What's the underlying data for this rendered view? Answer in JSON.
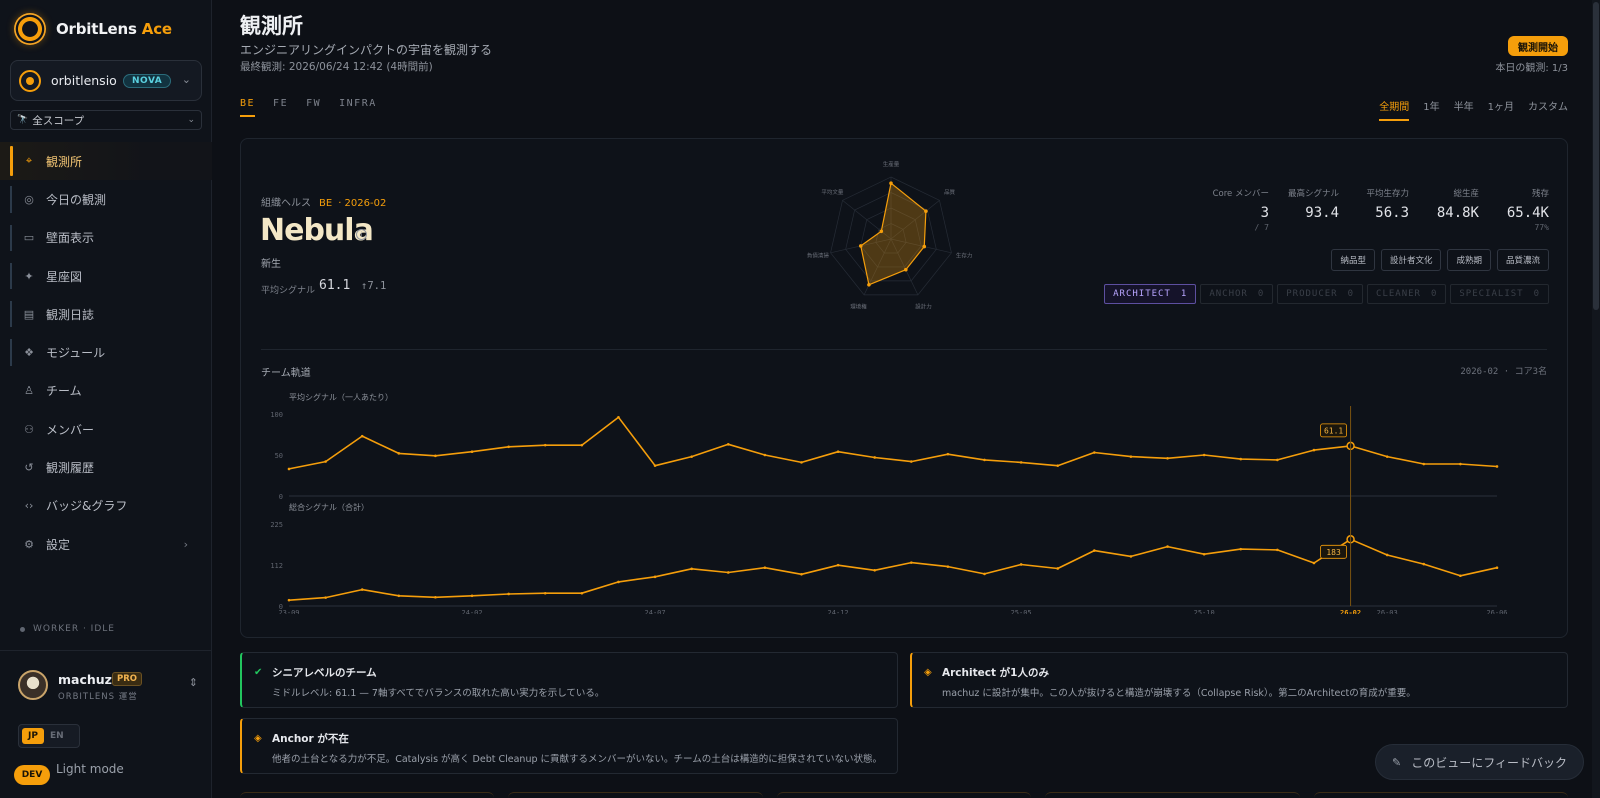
{
  "brand": {
    "name": "OrbitLens",
    "accent": "Ace"
  },
  "org": {
    "name": "orbitlensio",
    "badge": "NOVA"
  },
  "scope": {
    "label": "全スコープ"
  },
  "nav": [
    {
      "label": "観測所",
      "icon": "telescope-icon",
      "active": true
    },
    {
      "label": "今日の観測",
      "icon": "radar-icon"
    },
    {
      "label": "壁面表示",
      "icon": "monitor-icon"
    },
    {
      "label": "星座図",
      "icon": "constellation-icon"
    },
    {
      "label": "観測日誌",
      "icon": "journal-icon"
    },
    {
      "label": "モジュール",
      "icon": "modules-icon"
    },
    {
      "label": "チーム",
      "icon": "team-icon"
    },
    {
      "label": "メンバー",
      "icon": "members-icon"
    },
    {
      "label": "観測履歴",
      "icon": "history-icon"
    },
    {
      "label": "バッジ&グラフ",
      "icon": "code-icon"
    },
    {
      "label": "設定",
      "icon": "gear-icon"
    }
  ],
  "worker": "WORKER · IDLE",
  "user": {
    "name": "machuz",
    "plan": "PRO",
    "role": "ORBITLENS 運営"
  },
  "lang": {
    "on": "JP",
    "off": "EN"
  },
  "light_mode": "Light mode",
  "dev": "DEV",
  "header": {
    "title": "観測所",
    "subtitle": "エンジニアリングインパクトの宇宙を観測する",
    "last": "最終観測: 2026/06/24 12:42 (4時間前)",
    "start_button": "観測開始",
    "today": "本日の観測: 1/3"
  },
  "tabs": [
    "BE",
    "FE",
    "FW",
    "INFRA"
  ],
  "period_tabs": [
    "全期間",
    "1年",
    "半年",
    "1ヶ月",
    "カスタム"
  ],
  "health": {
    "label": "組織ヘルス",
    "scope": "BE",
    "date": "· 2026-02",
    "name": "Nebula",
    "phase": "新生",
    "avg_label": "平均シグナル",
    "avg_value": "61.1",
    "avg_delta": "↑7.1"
  },
  "radar": {
    "axes": [
      "生産量",
      "品質",
      "生存力",
      "設計力",
      "環境権",
      "負債清掃",
      "平均文量"
    ],
    "values": [
      0.9,
      0.72,
      0.55,
      0.55,
      0.82,
      0.5,
      0.2
    ]
  },
  "stats": [
    {
      "label": "Core メンバー",
      "value": "3",
      "sub": "/ 7"
    },
    {
      "label": "最高シグナル",
      "value": "93.4",
      "sub": ""
    },
    {
      "label": "平均生存力",
      "value": "56.3",
      "sub": ""
    },
    {
      "label": "総生産",
      "value": "84.8K",
      "sub": ""
    },
    {
      "label": "残存",
      "value": "65.4K",
      "sub": "77%"
    }
  ],
  "tags": [
    "納品型",
    "設計者文化",
    "成熟期",
    "品質濃流"
  ],
  "roles": [
    {
      "label": "ARCHITECT",
      "count": "1",
      "on": true
    },
    {
      "label": "ANCHOR",
      "count": "0"
    },
    {
      "label": "PRODUCER",
      "count": "0"
    },
    {
      "label": "CLEANER",
      "count": "0"
    },
    {
      "label": "SPECIALIST",
      "count": "0"
    }
  ],
  "trajectory": {
    "title": "チーム軌道",
    "meta": "2026-02 · コア3名"
  },
  "chart_data": [
    {
      "type": "line",
      "title": "平均シグナル（一人あたり）",
      "ylim": [
        0,
        100
      ],
      "yticks": [
        "100",
        "50",
        "0"
      ],
      "x": [
        "23-09",
        "23-10",
        "23-11",
        "23-12",
        "24-01",
        "24-02",
        "24-03",
        "24-04",
        "24-05",
        "24-06",
        "24-07",
        "24-08",
        "24-09",
        "24-10",
        "24-11",
        "24-12",
        "25-01",
        "25-02",
        "25-03",
        "25-04",
        "25-05",
        "25-06",
        "25-07",
        "25-08",
        "25-09",
        "25-10",
        "25-11",
        "25-12",
        "26-01",
        "26-02",
        "26-03",
        "26-04",
        "26-05",
        "26-06"
      ],
      "values": [
        33,
        42,
        73,
        52,
        49,
        54,
        60,
        62,
        62,
        96,
        37,
        48,
        63,
        50,
        41,
        54,
        47,
        42,
        51,
        44,
        41,
        37,
        53,
        48,
        46,
        50,
        45,
        44,
        56,
        61.1,
        48,
        39,
        39,
        36
      ],
      "highlight": {
        "x": "26-02",
        "label": "61.1"
      },
      "color": "#f59e0b"
    },
    {
      "type": "line",
      "title": "総合シグナル（合計）",
      "ylim": [
        0,
        225
      ],
      "yticks": [
        "225",
        "112",
        "0"
      ],
      "x": [
        "23-09",
        "23-10",
        "23-11",
        "23-12",
        "24-01",
        "24-02",
        "24-03",
        "24-04",
        "24-05",
        "24-06",
        "24-07",
        "24-08",
        "24-09",
        "24-10",
        "24-11",
        "24-12",
        "25-01",
        "25-02",
        "25-03",
        "25-04",
        "25-05",
        "25-06",
        "25-07",
        "25-08",
        "25-09",
        "25-10",
        "25-11",
        "25-12",
        "26-01",
        "26-02",
        "26-03",
        "26-04",
        "26-05",
        "26-06"
      ],
      "values": [
        16,
        23,
        45,
        28,
        24,
        28,
        33,
        35,
        35,
        66,
        80,
        102,
        92,
        105,
        87,
        112,
        98,
        119,
        108,
        88,
        114,
        103,
        152,
        136,
        163,
        142,
        156,
        154,
        118,
        183,
        140,
        115,
        83,
        105
      ],
      "highlight": {
        "x": "26-02",
        "label": "183"
      },
      "color": "#f59e0b"
    }
  ],
  "x_tick_labels": [
    "23-09",
    "24-02",
    "24-07",
    "24-12",
    "25-05",
    "25-10",
    "26-02",
    "26-03",
    "26-06"
  ],
  "insights": [
    {
      "kind": "ok",
      "title": "シニアレベルのチーム",
      "desc": "ミドルレベル: 61.1 — 7軸すべてでバランスの取れた高い実力を示している。"
    },
    {
      "kind": "warn",
      "title": "Architect が1人のみ",
      "desc": "machuz に設計が集中。この人が抜けると構造が崩壊する（Collapse Risk）。第二のArchitectの育成が重要。"
    },
    {
      "kind": "warn",
      "title": "Anchor が不在",
      "desc": "他者の土台となる力が不足。Catalysis が高く Debt Cleanup に貢献するメンバーがいない。チームの土台は構造的に担保されていない状態。"
    }
  ],
  "feedback": "このビューにフィードバック"
}
